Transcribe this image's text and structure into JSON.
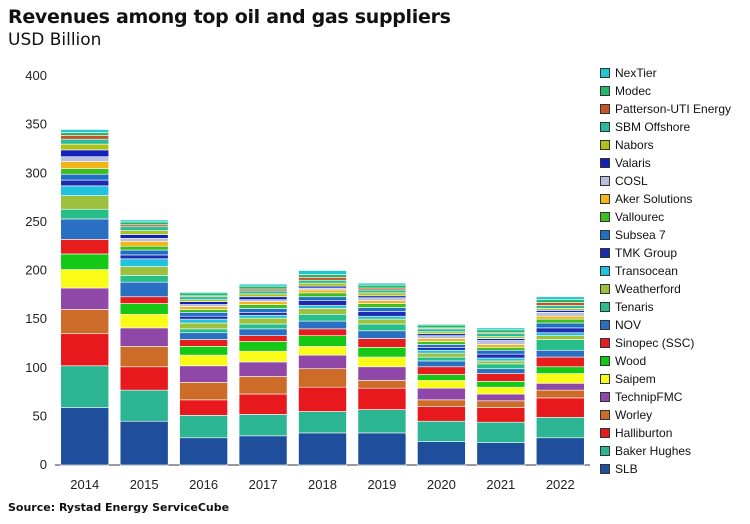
{
  "header": {
    "title": "Revenues among top oil and gas suppliers",
    "subtitle": "USD Billion"
  },
  "footer": {
    "source": "Source: Rystad Energy ServiceCube"
  },
  "colors": {
    "SLB": "#1f4e9c",
    "Baker Hughes": "#2bb592",
    "Halliburton": "#e8191c",
    "Worley": "#cd6b28",
    "TechnipFMC": "#8f47a8",
    "Saipem": "#fbfb18",
    "Wood": "#15c815",
    "Sinopec (SSC)": "#e71d1d",
    "NOV": "#2a70c2",
    "Tenaris": "#27be8a",
    "Weatherford": "#9ec13d",
    "Transocean": "#22c1dd",
    "TMK Group": "#1e2ab0",
    "Subsea 7": "#1f6fc2",
    "Vallourec": "#3fbf1f",
    "Aker Solutions": "#f4b41a",
    "COSL": "#b7c0dd",
    "Valaris": "#1222b8",
    "Nabors": "#adc21b",
    "SBM Offshore": "#25bd9c",
    "Patterson-UTI Energy": "#c65325",
    "Modec": "#20b96a",
    "NexTier": "#22c6cf"
  },
  "chart_data": {
    "type": "bar",
    "stacked": true,
    "title": "Revenues among top oil and gas suppliers",
    "subtitle": "USD Billion",
    "categories": [
      "2014",
      "2015",
      "2016",
      "2017",
      "2018",
      "2019",
      "2020",
      "2021",
      "2022"
    ],
    "ylim": [
      0,
      400
    ],
    "yticks": [
      0,
      50,
      100,
      150,
      200,
      250,
      300,
      350,
      400
    ],
    "grid": false,
    "legend_position": "right",
    "series": [
      {
        "name": "SLB",
        "values": [
          59,
          45,
          28,
          30,
          33,
          33,
          24,
          23,
          28
        ]
      },
      {
        "name": "Baker Hughes",
        "values": [
          43,
          32,
          23,
          22,
          22,
          24,
          21,
          21,
          21
        ]
      },
      {
        "name": "Halliburton",
        "values": [
          33,
          24,
          16,
          21,
          25,
          22,
          15,
          15,
          20
        ]
      },
      {
        "name": "Worley",
        "values": [
          25,
          21,
          18,
          18,
          19,
          8,
          7,
          7,
          8
        ]
      },
      {
        "name": "TechnipFMC",
        "values": [
          22,
          19,
          17,
          15,
          14,
          14,
          12,
          7,
          7
        ]
      },
      {
        "name": "Saipem",
        "values": [
          19,
          14,
          11,
          11,
          9,
          10,
          8,
          7,
          10
        ]
      },
      {
        "name": "Wood",
        "values": [
          16,
          11,
          9,
          10,
          11,
          10,
          6,
          6,
          7
        ]
      },
      {
        "name": "Sinopec (SSC)",
        "values": [
          15,
          7,
          7,
          6,
          7,
          9,
          8,
          8,
          10
        ]
      },
      {
        "name": "NOV",
        "values": [
          21,
          15,
          7,
          7,
          8,
          8,
          6,
          5,
          7
        ]
      },
      {
        "name": "Tenaris",
        "values": [
          10,
          7,
          4,
          5,
          7,
          7,
          4,
          5,
          11
        ]
      },
      {
        "name": "Weatherford",
        "values": [
          14,
          9,
          6,
          6,
          6,
          5,
          4,
          3,
          4
        ]
      },
      {
        "name": "Transocean",
        "values": [
          10,
          8,
          4,
          3,
          3,
          3,
          3,
          3,
          3
        ]
      },
      {
        "name": "TMK Group",
        "values": [
          6,
          4,
          3,
          3,
          5,
          5,
          3,
          4,
          5
        ]
      },
      {
        "name": "Subsea 7",
        "values": [
          6,
          5,
          4,
          4,
          4,
          4,
          3,
          4,
          5
        ]
      },
      {
        "name": "Vallourec",
        "values": [
          6,
          4,
          3,
          4,
          4,
          4,
          3,
          3,
          4
        ]
      },
      {
        "name": "Aker Solutions",
        "values": [
          7,
          5,
          3,
          3,
          3,
          3,
          3,
          3,
          3
        ]
      },
      {
        "name": "COSL",
        "values": [
          5,
          3,
          2,
          2,
          2,
          3,
          3,
          4,
          4
        ]
      },
      {
        "name": "Valaris",
        "values": [
          7,
          4,
          3,
          3,
          2,
          2,
          2,
          2,
          2
        ]
      },
      {
        "name": "Nabors",
        "values": [
          6,
          4,
          2,
          3,
          3,
          3,
          2,
          2,
          2
        ]
      },
      {
        "name": "SBM Offshore",
        "values": [
          5,
          4,
          3,
          3,
          3,
          3,
          3,
          3,
          3
        ]
      },
      {
        "name": "Patterson-UTI Energy",
        "values": [
          4,
          2,
          1,
          2,
          3,
          2,
          1,
          1,
          3
        ]
      },
      {
        "name": "Modec",
        "values": [
          3,
          3,
          3,
          3,
          3,
          3,
          3,
          3,
          3
        ]
      },
      {
        "name": "NexTier",
        "values": [
          3,
          2,
          1,
          2,
          4,
          2,
          1,
          2,
          3
        ]
      }
    ]
  }
}
